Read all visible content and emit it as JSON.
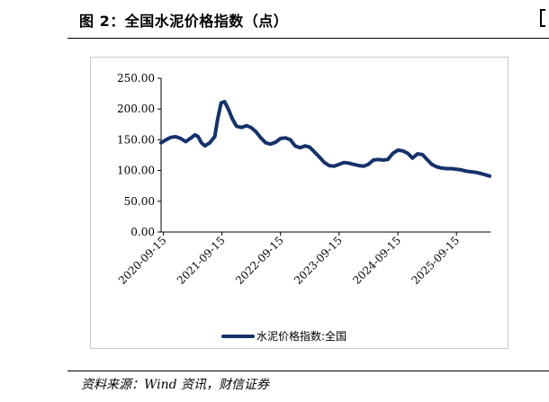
{
  "figure": {
    "title": "图 2：全国水泥价格指数（点）",
    "source": "资料来源：Wind 资讯，财信证券"
  },
  "chart_data": {
    "type": "line",
    "title": "",
    "xlabel": "",
    "ylabel": "",
    "ylim": [
      0,
      250
    ],
    "y_ticks": [
      "0.00",
      "50.00",
      "100.00",
      "150.00",
      "200.00",
      "250.00"
    ],
    "x_ticks": [
      "2020-09-15",
      "2021-09-15",
      "2022-09-15",
      "2023-09-15",
      "2024-09-15",
      "2025-09-15"
    ],
    "x_range": [
      "2020-09-01",
      "2026-04-15"
    ],
    "grid": false,
    "legend": "bottom-center",
    "color": "#16326b",
    "series": [
      {
        "name": "水泥价格指数:全国",
        "points": [
          [
            "2020-09-01",
            145
          ],
          [
            "2020-10-01",
            150
          ],
          [
            "2020-11-01",
            154
          ],
          [
            "2020-12-01",
            155
          ],
          [
            "2021-01-01",
            152
          ],
          [
            "2021-02-01",
            147
          ],
          [
            "2021-03-01",
            152
          ],
          [
            "2021-04-01",
            158
          ],
          [
            "2021-04-20",
            155
          ],
          [
            "2021-05-10",
            145
          ],
          [
            "2021-06-01",
            140
          ],
          [
            "2021-07-01",
            145
          ],
          [
            "2021-08-01",
            155
          ],
          [
            "2021-08-20",
            185
          ],
          [
            "2021-09-10",
            210
          ],
          [
            "2021-10-01",
            212
          ],
          [
            "2021-10-25",
            200
          ],
          [
            "2021-11-20",
            183
          ],
          [
            "2021-12-15",
            172
          ],
          [
            "2022-01-15",
            170
          ],
          [
            "2022-02-15",
            173
          ],
          [
            "2022-03-15",
            170
          ],
          [
            "2022-04-15",
            163
          ],
          [
            "2022-05-15",
            153
          ],
          [
            "2022-06-15",
            145
          ],
          [
            "2022-07-15",
            143
          ],
          [
            "2022-08-15",
            146
          ],
          [
            "2022-09-15",
            152
          ],
          [
            "2022-10-15",
            153
          ],
          [
            "2022-11-15",
            150
          ],
          [
            "2022-12-15",
            140
          ],
          [
            "2023-01-15",
            137
          ],
          [
            "2023-02-15",
            140
          ],
          [
            "2023-03-15",
            138
          ],
          [
            "2023-04-15",
            130
          ],
          [
            "2023-05-15",
            122
          ],
          [
            "2023-06-15",
            113
          ],
          [
            "2023-07-15",
            108
          ],
          [
            "2023-08-15",
            107
          ],
          [
            "2023-09-15",
            110
          ],
          [
            "2023-10-15",
            113
          ],
          [
            "2023-11-15",
            112
          ],
          [
            "2023-12-15",
            110
          ],
          [
            "2024-01-15",
            108
          ],
          [
            "2024-02-15",
            107
          ],
          [
            "2024-03-15",
            110
          ],
          [
            "2024-04-15",
            117
          ],
          [
            "2024-05-15",
            118
          ],
          [
            "2024-06-15",
            117
          ],
          [
            "2024-07-15",
            118
          ],
          [
            "2024-08-15",
            128
          ],
          [
            "2024-09-15",
            133
          ],
          [
            "2024-10-15",
            132
          ],
          [
            "2024-11-15",
            128
          ],
          [
            "2024-12-15",
            120
          ],
          [
            "2025-01-15",
            127
          ],
          [
            "2025-02-15",
            126
          ],
          [
            "2025-03-15",
            118
          ],
          [
            "2025-04-15",
            110
          ],
          [
            "2025-05-15",
            106
          ],
          [
            "2025-06-15",
            104
          ],
          [
            "2025-07-15",
            103
          ],
          [
            "2025-08-15",
            103
          ],
          [
            "2025-09-15",
            102
          ],
          [
            "2025-10-15",
            101
          ],
          [
            "2025-11-15",
            99
          ],
          [
            "2025-12-15",
            98
          ],
          [
            "2026-01-15",
            97
          ],
          [
            "2026-02-15",
            95
          ],
          [
            "2026-03-15",
            93
          ],
          [
            "2026-04-10",
            91
          ]
        ]
      }
    ]
  }
}
